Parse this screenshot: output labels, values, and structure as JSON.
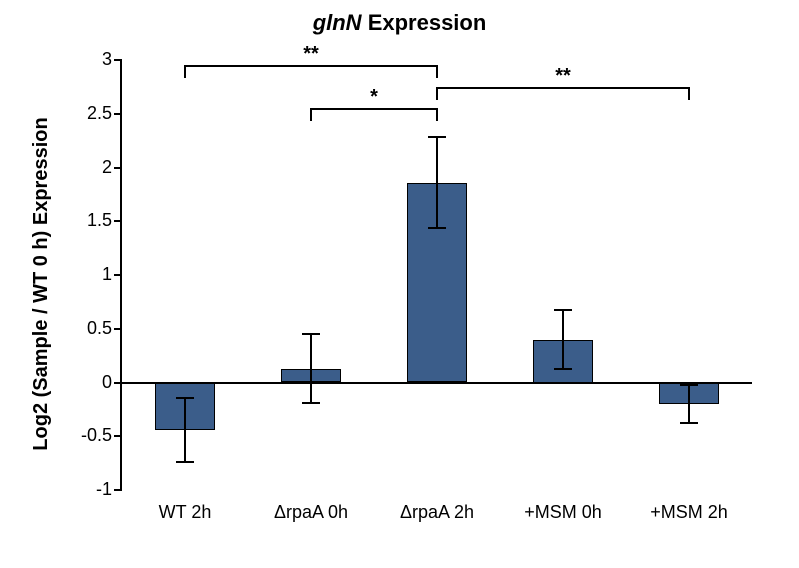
{
  "chart": {
    "type": "bar",
    "title_prefix": "glnN",
    "title_suffix": " Expression",
    "title_fontsize": 22,
    "ylabel": "Log2 (Sample / WT 0 h) Expression",
    "ylabel_fontsize": 20,
    "tick_fontsize": 18,
    "xlabel_fontsize": 18,
    "colors": {
      "bar": "#3b5d8a",
      "border": "#000000",
      "background": "#ffffff"
    },
    "ylim": [
      -1,
      3
    ],
    "ytick_step": 0.5,
    "yticks": [
      -1,
      -0.5,
      0,
      0.5,
      1,
      1.5,
      2,
      2.5,
      3
    ],
    "bar_width_rel": 0.48,
    "capwidth_rel": 0.15,
    "categories": [
      "WT 2h",
      "ΔrpaA 0h",
      "ΔrpaA 2h",
      "+MSM 0h",
      "+MSM 2h"
    ],
    "values": [
      -0.44,
      0.13,
      1.86,
      0.4,
      -0.2
    ],
    "err_up": [
      0.3,
      0.32,
      0.42,
      0.27,
      0.18
    ],
    "err_dn": [
      0.3,
      0.32,
      0.42,
      0.27,
      0.18
    ],
    "significance": [
      {
        "from": 0,
        "to": 2,
        "y": 2.95,
        "drop": 0.12,
        "label": "**"
      },
      {
        "from": 1,
        "to": 2,
        "y": 2.55,
        "drop": 0.12,
        "label": "*"
      },
      {
        "from": 2,
        "to": 4,
        "y": 2.75,
        "drop": 0.12,
        "label": "**"
      }
    ]
  }
}
